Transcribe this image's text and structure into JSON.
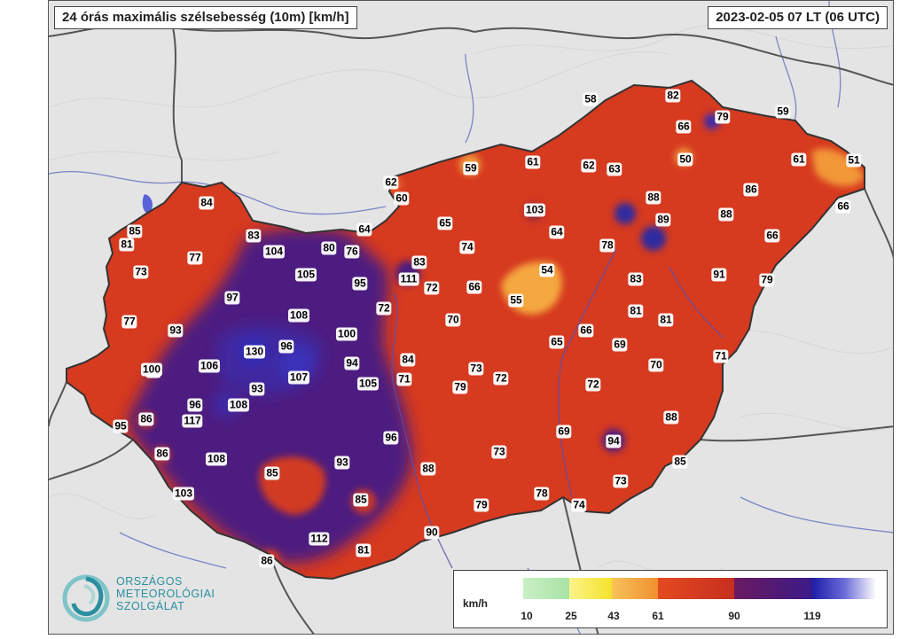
{
  "header": {
    "title": "24 órás maximális szélsebesség (10m) [km/h]",
    "datetime": "2023-02-05 07 LT (06 UTC)"
  },
  "legend": {
    "unit": "km/h",
    "ticks": [
      "10",
      "25",
      "43",
      "61",
      "90",
      "119"
    ],
    "bands": [
      {
        "from": 10,
        "to": 25,
        "color": "#b8e6b0"
      },
      {
        "from": 25,
        "to": 43,
        "color": "#f5ee4a"
      },
      {
        "from": 43,
        "to": 61,
        "color": "#f4a640"
      },
      {
        "from": 61,
        "to": 90,
        "color": "#d93a1c"
      },
      {
        "from": 90,
        "to": 119,
        "color": "#4a1a7a"
      },
      {
        "from": 119,
        "to": 140,
        "color": "#2a2ab0"
      }
    ]
  },
  "logo": {
    "lines": [
      "ORSZÁGOS",
      "METEOROLÓGIAI",
      "SZOLGÁLAT"
    ]
  },
  "stations": [
    {
      "v": "58"
    },
    {
      "v": "82"
    },
    {
      "v": "79"
    },
    {
      "v": "66"
    },
    {
      "v": "59"
    },
    {
      "v": "61"
    },
    {
      "v": "62"
    },
    {
      "v": "63"
    },
    {
      "v": "50"
    },
    {
      "v": "61"
    },
    {
      "v": "51"
    },
    {
      "v": "59"
    },
    {
      "v": "62"
    },
    {
      "v": "60"
    },
    {
      "v": "88"
    },
    {
      "v": "86"
    },
    {
      "v": "103"
    },
    {
      "v": "89"
    },
    {
      "v": "88"
    },
    {
      "v": "66"
    },
    {
      "v": "84"
    },
    {
      "v": "65"
    },
    {
      "v": "64"
    },
    {
      "v": "66"
    },
    {
      "v": "85"
    },
    {
      "v": "81"
    },
    {
      "v": "83"
    },
    {
      "v": "80"
    },
    {
      "v": "76"
    },
    {
      "v": "64"
    },
    {
      "v": "74"
    },
    {
      "v": "78"
    },
    {
      "v": "77"
    },
    {
      "v": "104"
    },
    {
      "v": "83"
    },
    {
      "v": "73"
    },
    {
      "v": "105"
    },
    {
      "v": "95"
    },
    {
      "v": "111"
    },
    {
      "v": "72"
    },
    {
      "v": "66"
    },
    {
      "v": "54"
    },
    {
      "v": "91"
    },
    {
      "v": "79"
    },
    {
      "v": "97"
    },
    {
      "v": "83"
    },
    {
      "v": "55"
    },
    {
      "v": "72"
    },
    {
      "v": "108"
    },
    {
      "v": "77"
    },
    {
      "v": "70"
    },
    {
      "v": "81"
    },
    {
      "v": "81"
    },
    {
      "v": "93"
    },
    {
      "v": "100"
    },
    {
      "v": "66"
    },
    {
      "v": "130"
    },
    {
      "v": "96"
    },
    {
      "v": "65"
    },
    {
      "v": "69"
    },
    {
      "v": "84"
    },
    {
      "v": "70"
    },
    {
      "v": "71"
    },
    {
      "v": "70"
    },
    {
      "v": "100"
    },
    {
      "v": "106"
    },
    {
      "v": "94"
    },
    {
      "v": "107"
    },
    {
      "v": "73"
    },
    {
      "v": "72"
    },
    {
      "v": "71"
    },
    {
      "v": "105"
    },
    {
      "v": "79"
    },
    {
      "v": "93"
    },
    {
      "v": "72"
    },
    {
      "v": "108"
    },
    {
      "v": "96"
    },
    {
      "v": "88"
    },
    {
      "v": "86"
    },
    {
      "v": "117"
    },
    {
      "v": "95"
    },
    {
      "v": "69"
    },
    {
      "v": "96"
    },
    {
      "v": "94"
    },
    {
      "v": "86"
    },
    {
      "v": "108"
    },
    {
      "v": "73"
    },
    {
      "v": "93"
    },
    {
      "v": "88"
    },
    {
      "v": "85"
    },
    {
      "v": "85"
    },
    {
      "v": "73"
    },
    {
      "v": "103"
    },
    {
      "v": "78"
    },
    {
      "v": "85"
    },
    {
      "v": "79"
    },
    {
      "v": "74"
    },
    {
      "v": "90"
    },
    {
      "v": "112"
    },
    {
      "v": "81"
    },
    {
      "v": "86"
    }
  ]
}
